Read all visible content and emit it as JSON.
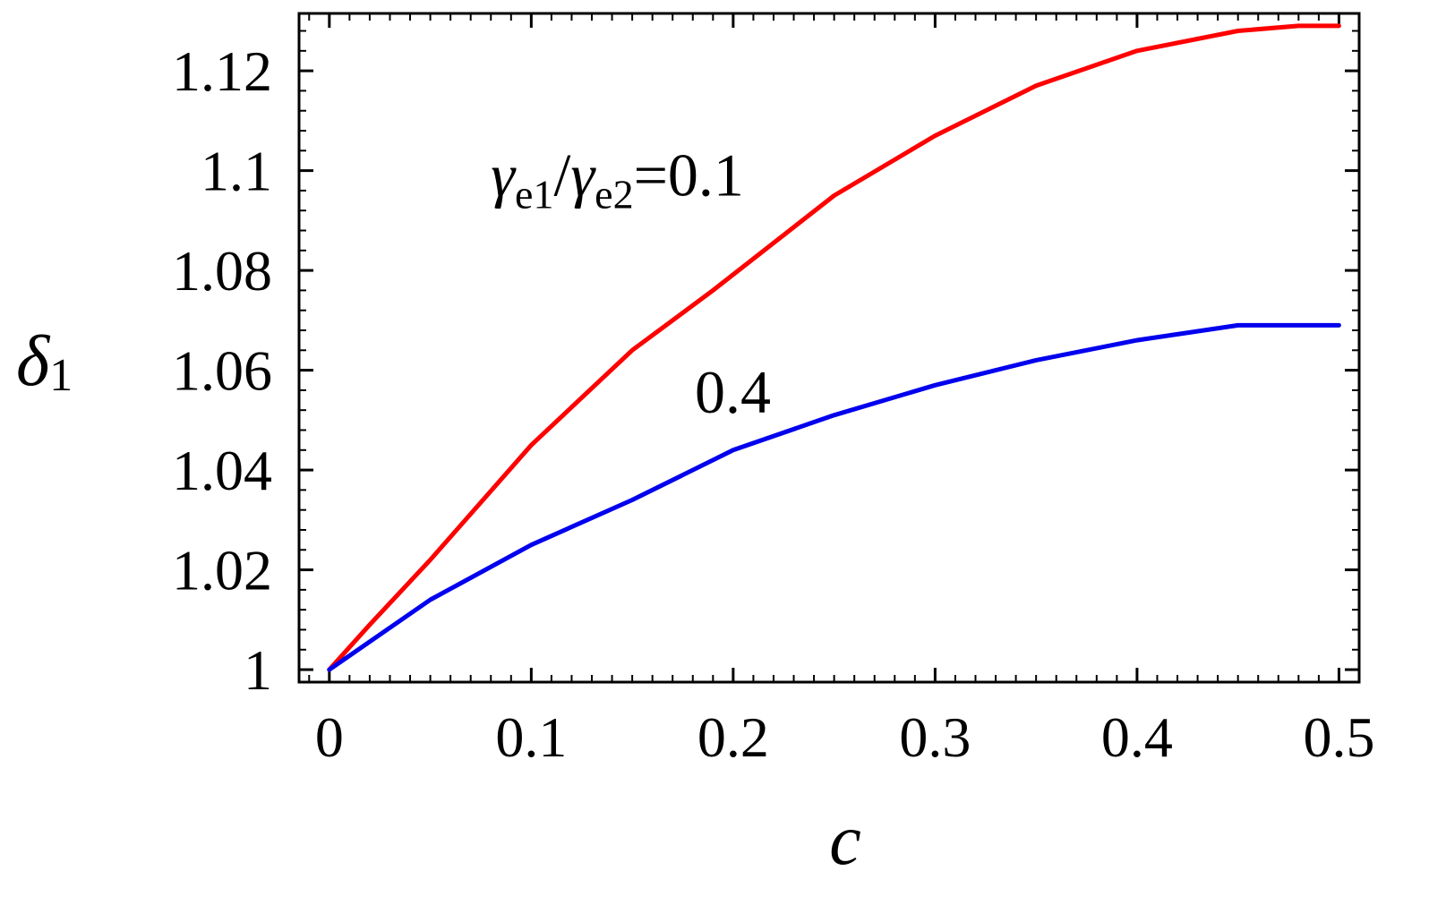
{
  "chart_data": {
    "type": "line",
    "xlabel": "c",
    "ylabel": {
      "symbol": "δ",
      "subscript": "1"
    },
    "xlim": [
      -0.015,
      0.51
    ],
    "ylim": [
      0.9975,
      1.1315
    ],
    "x_ticks": [
      0,
      0.1,
      0.2,
      0.3,
      0.4,
      0.5
    ],
    "x_tick_labels": [
      "0",
      "0.1",
      "0.2",
      "0.3",
      "0.4",
      "0.5"
    ],
    "y_ticks": [
      1,
      1.02,
      1.04,
      1.06,
      1.08,
      1.1,
      1.12
    ],
    "y_tick_labels": [
      "1",
      "1.02",
      "1.04",
      "1.06",
      "1.08",
      "1.1",
      "1.12"
    ],
    "grid": false,
    "colors": {
      "series_red": "#ff0000",
      "series_blue": "#0000ee",
      "frame": "#000000"
    },
    "series": [
      {
        "color": "#ff0000",
        "x": [
          0,
          0.02,
          0.05,
          0.1,
          0.15,
          0.19,
          0.25,
          0.3,
          0.35,
          0.4,
          0.45,
          0.48,
          0.5
        ],
        "y": [
          1.0,
          1.009,
          1.022,
          1.045,
          1.064,
          1.076,
          1.095,
          1.107,
          1.117,
          1.124,
          1.128,
          1.129,
          1.129
        ]
      },
      {
        "color": "#0000ee",
        "x": [
          0,
          0.05,
          0.1,
          0.15,
          0.2,
          0.25,
          0.3,
          0.35,
          0.4,
          0.45,
          0.5
        ],
        "y": [
          1.0,
          1.014,
          1.025,
          1.034,
          1.044,
          1.051,
          1.057,
          1.062,
          1.066,
          1.069,
          1.069
        ]
      }
    ],
    "annotations": [
      {
        "id": "red",
        "parts": [
          {
            "text": "γ",
            "italic": true
          },
          {
            "text": "e1",
            "sub": true
          },
          {
            "text": "/",
            "italic": false
          },
          {
            "text": "γ",
            "italic": true
          },
          {
            "text": "e2",
            "sub": true
          },
          {
            "text": "=0.1",
            "italic": false
          }
        ],
        "x": 0.08,
        "y": 1.095
      },
      {
        "id": "blue",
        "parts": [
          {
            "text": "0.4",
            "italic": false
          }
        ],
        "x": 0.181,
        "y": 1.0515
      }
    ]
  }
}
